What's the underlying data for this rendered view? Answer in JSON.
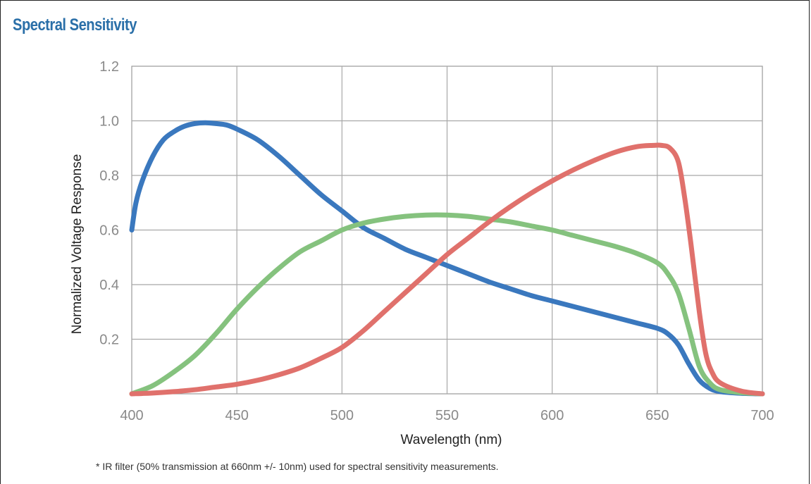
{
  "chart_data": {
    "type": "line",
    "title": "Spectral Sensitivity",
    "xlabel": "Wavelength (nm)",
    "ylabel": "Normalized Voltage Response",
    "xlim": [
      400,
      700
    ],
    "ylim": [
      0,
      1.2
    ],
    "x_ticks": [
      "400",
      "450",
      "500",
      "550",
      "600",
      "650",
      "700"
    ],
    "y_ticks": [
      "0.2",
      "0.4",
      "0.6",
      "0.8",
      "1.0",
      "1.2"
    ],
    "grid": true,
    "legend": "none",
    "footnote": "* IR filter (50% transmission at 660nm +/- 10nm) used for spectral sensitivity measurements.",
    "series": [
      {
        "color": "#3a78be",
        "x": [
          400,
          402,
          405,
          410,
          415,
          420,
          425,
          430,
          435,
          440,
          445,
          450,
          460,
          470,
          480,
          490,
          500,
          510,
          520,
          530,
          540,
          550,
          560,
          570,
          580,
          590,
          600,
          610,
          620,
          630,
          640,
          650,
          655,
          660,
          665,
          670,
          675,
          680,
          690,
          700
        ],
        "y": [
          0.6,
          0.7,
          0.78,
          0.87,
          0.93,
          0.96,
          0.98,
          0.99,
          0.993,
          0.99,
          0.985,
          0.97,
          0.93,
          0.87,
          0.8,
          0.73,
          0.67,
          0.61,
          0.57,
          0.53,
          0.5,
          0.47,
          0.44,
          0.41,
          0.385,
          0.36,
          0.34,
          0.32,
          0.3,
          0.28,
          0.26,
          0.24,
          0.22,
          0.18,
          0.11,
          0.05,
          0.02,
          0.008,
          0.002,
          0
        ]
      },
      {
        "color": "#85c27e",
        "x": [
          400,
          410,
          420,
          430,
          440,
          450,
          460,
          470,
          480,
          490,
          500,
          510,
          520,
          530,
          540,
          550,
          560,
          570,
          580,
          590,
          600,
          610,
          620,
          630,
          640,
          650,
          655,
          660,
          665,
          670,
          675,
          680,
          690,
          700
        ],
        "y": [
          0,
          0.03,
          0.08,
          0.14,
          0.22,
          0.31,
          0.39,
          0.46,
          0.52,
          0.56,
          0.6,
          0.625,
          0.64,
          0.65,
          0.655,
          0.655,
          0.65,
          0.64,
          0.63,
          0.615,
          0.6,
          0.58,
          0.56,
          0.54,
          0.515,
          0.48,
          0.44,
          0.37,
          0.24,
          0.1,
          0.04,
          0.015,
          0.004,
          0
        ]
      },
      {
        "color": "#e0716c",
        "x": [
          400,
          410,
          420,
          430,
          440,
          450,
          460,
          470,
          480,
          490,
          500,
          510,
          520,
          530,
          540,
          550,
          560,
          570,
          580,
          590,
          600,
          610,
          620,
          630,
          640,
          648,
          652,
          656,
          660,
          663,
          666,
          670,
          673,
          676,
          680,
          690,
          700
        ],
        "y": [
          0,
          0.003,
          0.008,
          0.015,
          0.025,
          0.035,
          0.05,
          0.07,
          0.095,
          0.13,
          0.17,
          0.23,
          0.3,
          0.37,
          0.44,
          0.51,
          0.57,
          0.63,
          0.685,
          0.735,
          0.78,
          0.82,
          0.855,
          0.885,
          0.905,
          0.91,
          0.91,
          0.9,
          0.85,
          0.72,
          0.55,
          0.3,
          0.15,
          0.08,
          0.04,
          0.01,
          0
        ]
      }
    ]
  }
}
